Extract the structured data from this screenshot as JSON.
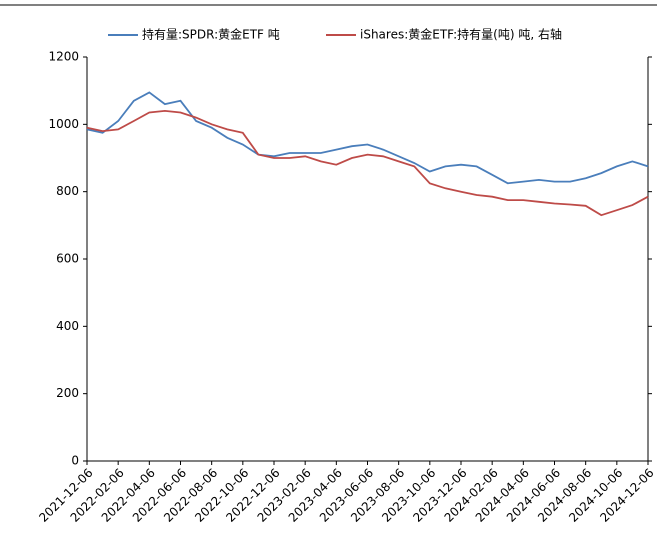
{
  "chart_data": {
    "type": "line",
    "categories": [
      "2021-12-06",
      null,
      "2022-02-06",
      null,
      "2022-04-06",
      null,
      "2022-06-06",
      null,
      "2022-08-06",
      null,
      "2022-10-06",
      null,
      "2022-12-06",
      null,
      "2023-02-06",
      null,
      "2023-04-06",
      null,
      "2023-06-06",
      null,
      "2023-08-06",
      null,
      "2023-10-06",
      null,
      "2023-12-06",
      null,
      "2024-02-06",
      null,
      "2024-04-06",
      null,
      "2024-06-06",
      null,
      "2024-08-06",
      null,
      "2024-10-06",
      null,
      "2024-12-06"
    ],
    "series": [
      {
        "name": "持有量:SPDR:黄金ETF 吨",
        "color": "#4a7ebb",
        "values": [
          985,
          975,
          1010,
          1070,
          1095,
          1060,
          1070,
          1010,
          990,
          960,
          940,
          910,
          905,
          915,
          915,
          915,
          925,
          935,
          940,
          925,
          905,
          885,
          860,
          875,
          880,
          875,
          850,
          825,
          830,
          835,
          830,
          830,
          840,
          855,
          875,
          890,
          875
        ]
      },
      {
        "name": "iShares:黄金ETF:持有量(吨) 吨, 右轴",
        "color": "#be4b48",
        "values": [
          990,
          980,
          985,
          1010,
          1035,
          1040,
          1035,
          1020,
          1000,
          985,
          975,
          910,
          900,
          900,
          905,
          890,
          880,
          900,
          910,
          905,
          890,
          875,
          825,
          810,
          800,
          790,
          785,
          775,
          775,
          770,
          765,
          762,
          758,
          730,
          745,
          760,
          785
        ]
      }
    ],
    "ylim": [
      0,
      1200
    ],
    "yticks": [
      0,
      200,
      400,
      600,
      800,
      1000,
      1200
    ],
    "legend": "top"
  }
}
